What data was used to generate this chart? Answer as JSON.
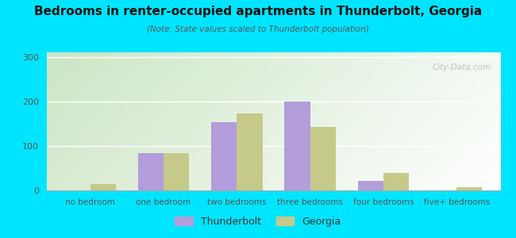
{
  "title": "Bedrooms in renter-occupied apartments in Thunderbolt, Georgia",
  "subtitle": "(Note: State values scaled to Thunderbolt population)",
  "categories": [
    "no bedroom",
    "one bedroom",
    "two bedrooms",
    "three bedrooms",
    "four bedrooms",
    "five+ bedrooms"
  ],
  "thunderbolt_values": [
    0,
    83,
    153,
    200,
    22,
    0
  ],
  "georgia_values": [
    15,
    83,
    172,
    143,
    40,
    8
  ],
  "thunderbolt_color": "#b39ddb",
  "georgia_color": "#c5c98a",
  "background_outer": "#00e5ff",
  "plot_bg_top_left": "#c8e6c0",
  "plot_bg_top_right": "#e8f5f5",
  "plot_bg_bottom_left": "#d4edcc",
  "plot_bg_bottom_right": "#ffffff",
  "ylim": [
    0,
    310
  ],
  "yticks": [
    0,
    100,
    200,
    300
  ],
  "bar_width": 0.35,
  "figsize": [
    6.5,
    3.0
  ],
  "dpi": 100
}
